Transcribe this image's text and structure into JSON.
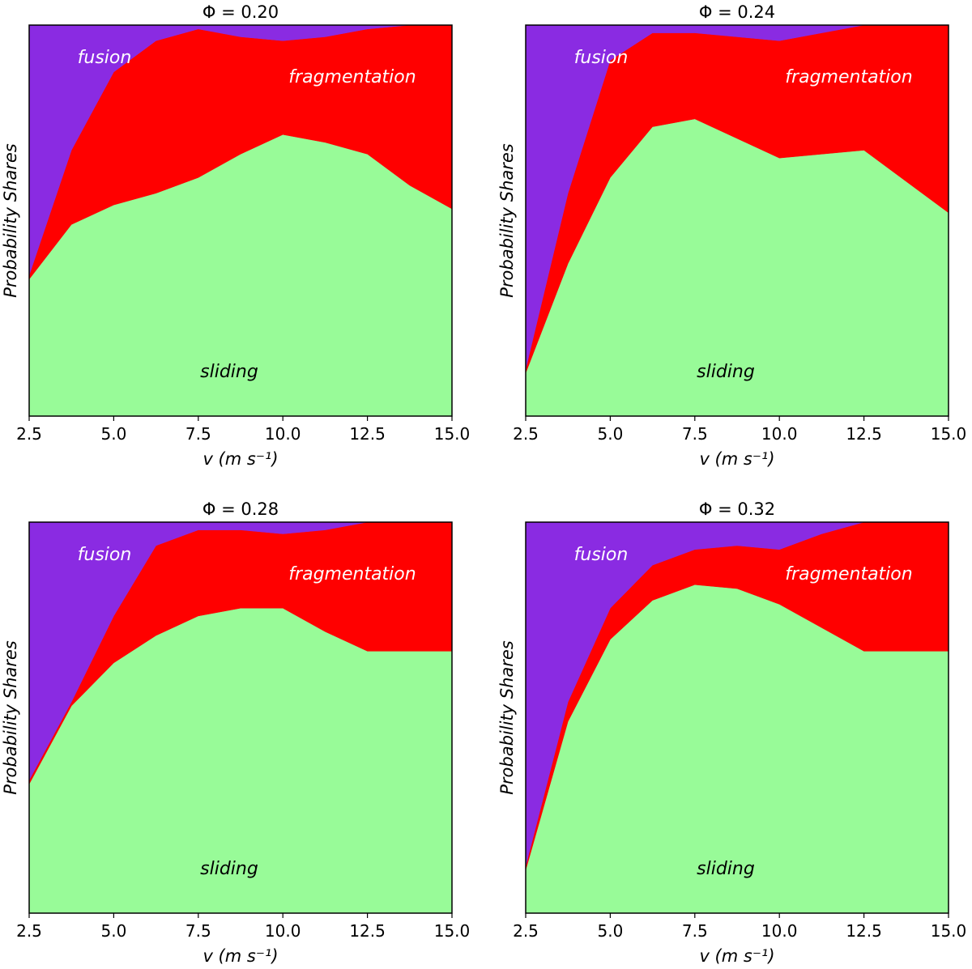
{
  "colors": {
    "sliding": "#98fb98",
    "fragmentation": "#ff0000",
    "fusion": "#8a2be2",
    "fusion_label": "#ffffff",
    "fragmentation_label": "#ffffff",
    "sliding_label": "#000000"
  },
  "chart_data": [
    {
      "type": "area",
      "stacked": true,
      "title": "Φ = 0.20",
      "xlabel": "v (m s⁻¹)",
      "ylabel": "Probability Shares",
      "xlim": [
        2.5,
        15.0
      ],
      "ylim": [
        0,
        1
      ],
      "x_ticks": [
        "2.5",
        "5.0",
        "7.5",
        "10.0",
        "12.5",
        "15.0"
      ],
      "y_ticks_visible": false,
      "x": [
        2.5,
        3.75,
        5.0,
        6.25,
        7.5,
        8.75,
        10.0,
        11.25,
        12.5,
        13.75,
        15.0
      ],
      "series": [
        {
          "name": "sliding",
          "values": [
            0.35,
            0.49,
            0.54,
            0.57,
            0.61,
            0.67,
            0.72,
            0.7,
            0.67,
            0.59,
            0.53
          ]
        },
        {
          "name": "fragmentation",
          "values": [
            0.01,
            0.19,
            0.34,
            0.39,
            0.38,
            0.3,
            0.24,
            0.27,
            0.32,
            0.41,
            0.47
          ]
        },
        {
          "name": "fusion",
          "values": [
            0.64,
            0.32,
            0.12,
            0.04,
            0.01,
            0.03,
            0.04,
            0.03,
            0.01,
            0.0,
            0.0
          ]
        }
      ],
      "labels": {
        "fusion": "fusion",
        "fragmentation": "fragmentation",
        "sliding": "sliding"
      }
    },
    {
      "type": "area",
      "stacked": true,
      "title": "Φ = 0.24",
      "xlabel": "v (m s⁻¹)",
      "ylabel": "Probability Shares",
      "xlim": [
        2.5,
        15.0
      ],
      "ylim": [
        0,
        1
      ],
      "x_ticks": [
        "2.5",
        "5.0",
        "7.5",
        "10.0",
        "12.5",
        "15.0"
      ],
      "y_ticks_visible": false,
      "x": [
        2.5,
        3.75,
        5.0,
        6.25,
        7.5,
        8.75,
        10.0,
        11.25,
        12.5,
        13.75,
        15.0
      ],
      "series": [
        {
          "name": "sliding",
          "values": [
            0.11,
            0.39,
            0.61,
            0.74,
            0.76,
            0.71,
            0.66,
            0.67,
            0.68,
            0.6,
            0.52
          ]
        },
        {
          "name": "fragmentation",
          "values": [
            0.01,
            0.18,
            0.3,
            0.24,
            0.22,
            0.26,
            0.3,
            0.31,
            0.32,
            0.4,
            0.48
          ]
        },
        {
          "name": "fusion",
          "values": [
            0.88,
            0.43,
            0.09,
            0.02,
            0.02,
            0.03,
            0.04,
            0.02,
            0.0,
            0.0,
            0.0
          ]
        }
      ],
      "labels": {
        "fusion": "fusion",
        "fragmentation": "fragmentation",
        "sliding": "sliding"
      }
    },
    {
      "type": "area",
      "stacked": true,
      "title": "Φ = 0.28",
      "xlabel": "v (m s⁻¹)",
      "ylabel": "Probability Shares",
      "xlim": [
        2.5,
        15.0
      ],
      "ylim": [
        0,
        1
      ],
      "x_ticks": [
        "2.5",
        "5.0",
        "7.5",
        "10.0",
        "12.5",
        "15.0"
      ],
      "y_ticks_visible": false,
      "x": [
        2.5,
        3.75,
        5.0,
        6.25,
        7.5,
        8.75,
        10.0,
        11.25,
        12.5,
        13.75,
        15.0
      ],
      "series": [
        {
          "name": "sliding",
          "values": [
            0.33,
            0.53,
            0.64,
            0.71,
            0.76,
            0.78,
            0.78,
            0.72,
            0.67,
            0.67,
            0.67
          ]
        },
        {
          "name": "fragmentation",
          "values": [
            0.01,
            0.01,
            0.12,
            0.23,
            0.22,
            0.2,
            0.19,
            0.26,
            0.33,
            0.33,
            0.33
          ]
        },
        {
          "name": "fusion",
          "values": [
            0.66,
            0.46,
            0.24,
            0.06,
            0.02,
            0.02,
            0.03,
            0.02,
            0.0,
            0.0,
            0.0
          ]
        }
      ],
      "labels": {
        "fusion": "fusion",
        "fragmentation": "fragmentation",
        "sliding": "sliding"
      }
    },
    {
      "type": "area",
      "stacked": true,
      "title": "Φ = 0.32",
      "xlabel": "v (m s⁻¹)",
      "ylabel": "Probability Shares",
      "xlim": [
        2.5,
        15.0
      ],
      "ylim": [
        0,
        1
      ],
      "x_ticks": [
        "2.5",
        "5.0",
        "7.5",
        "10.0",
        "12.5",
        "15.0"
      ],
      "y_ticks_visible": false,
      "x": [
        2.5,
        3.75,
        5.0,
        6.25,
        7.5,
        8.75,
        10.0,
        11.25,
        12.5,
        13.75,
        15.0
      ],
      "series": [
        {
          "name": "sliding",
          "values": [
            0.11,
            0.49,
            0.7,
            0.8,
            0.84,
            0.83,
            0.79,
            0.73,
            0.67,
            0.67,
            0.67
          ]
        },
        {
          "name": "fragmentation",
          "values": [
            0.01,
            0.05,
            0.08,
            0.09,
            0.09,
            0.11,
            0.14,
            0.24,
            0.33,
            0.33,
            0.33
          ]
        },
        {
          "name": "fusion",
          "values": [
            0.88,
            0.46,
            0.22,
            0.11,
            0.07,
            0.06,
            0.07,
            0.03,
            0.0,
            0.0,
            0.0
          ]
        }
      ],
      "labels": {
        "fusion": "fusion",
        "fragmentation": "fragmentation",
        "sliding": "sliding"
      }
    }
  ]
}
